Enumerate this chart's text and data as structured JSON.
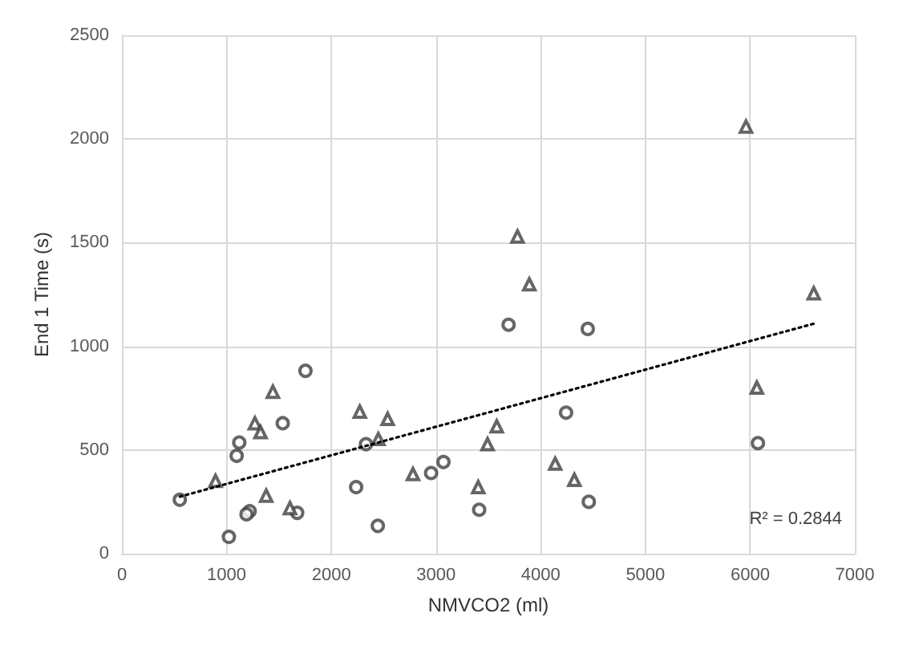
{
  "chart_data": {
    "type": "scatter",
    "xlabel": "NMVCO2 (ml)",
    "ylabel": "End 1 Time (s)",
    "xlim": [
      0,
      7000
    ],
    "ylim": [
      0,
      2500
    ],
    "xticks": [
      0,
      1000,
      2000,
      3000,
      4000,
      5000,
      6000,
      7000
    ],
    "yticks": [
      0,
      500,
      1000,
      1500,
      2000,
      2500
    ],
    "grid": true,
    "annotations": [
      "R² = 0.2844"
    ],
    "series": [
      {
        "marker": "circle",
        "color": "#404040",
        "x": [
          1753,
          1536,
          1121,
          1096,
          2331,
          2237,
          2444,
          553,
          1220,
          1190,
          1674,
          1022,
          2953,
          3071,
          3412,
          3693,
          4242,
          4459,
          4449,
          6074
        ],
        "values": [
          882,
          629,
          536,
          472,
          528,
          321,
          134,
          260,
          205,
          190,
          197,
          81,
          389,
          442,
          212,
          1104,
          680,
          250,
          1084,
          533
        ]
      },
      {
        "marker": "triangle",
        "color": "#404040",
        "x": [
          1442,
          1270,
          1324,
          2272,
          2538,
          2449,
          2780,
          894,
          1378,
          1605,
          3403,
          3580,
          3492,
          3891,
          4138,
          4321,
          5960,
          3778,
          6607,
          6064
        ],
        "values": [
          781,
          629,
          586,
          685,
          650,
          553,
          384,
          351,
          280,
          220,
          321,
          614,
          528,
          1299,
          434,
          356,
          2060,
          1530,
          1256,
          801
        ]
      },
      {
        "type": "line",
        "line_style": "dotted",
        "color": "#000000",
        "x": [
          553,
          6607
        ],
        "values": [
          275,
          1109
        ]
      }
    ]
  }
}
